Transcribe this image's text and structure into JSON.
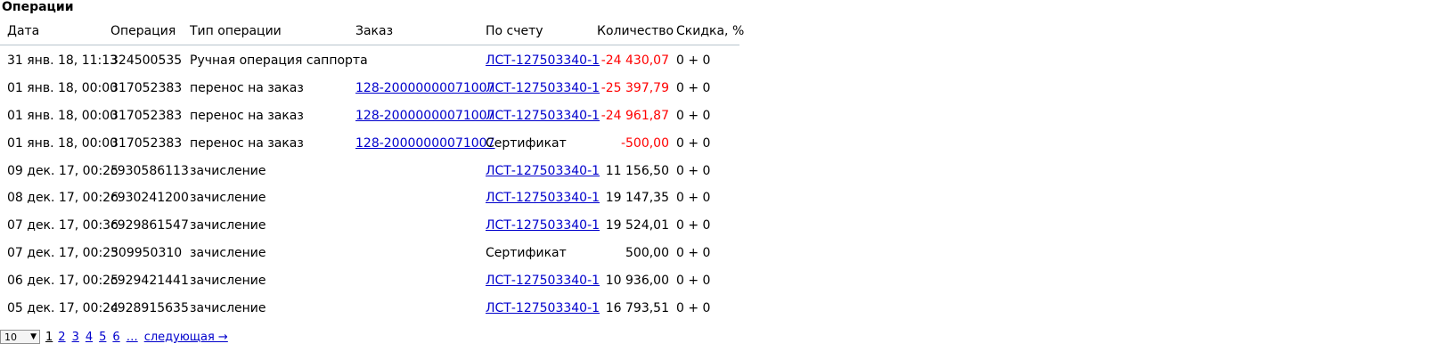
{
  "title": "Операции",
  "table": {
    "headers": [
      "Дата",
      "Операция",
      "Тип операции",
      "Заказ",
      "По счету",
      "Количество",
      "Скидка, %"
    ],
    "rows": [
      {
        "date": "31 янв. 18, 11:13",
        "op": "324500535",
        "type": "Ручная операция саппорта",
        "order": "",
        "account": "ЛСТ-127503340-1",
        "account_link": true,
        "qty": "-24 430,07",
        "neg": true,
        "discount": "0 + 0"
      },
      {
        "date": "01 янв. 18, 00:00",
        "op": "317052383",
        "type": "перенос на заказ",
        "order": "128-20000000071007",
        "account": "ЛСТ-127503340-1",
        "account_link": true,
        "qty": "-25 397,79",
        "neg": true,
        "discount": "0 + 0"
      },
      {
        "date": "01 янв. 18, 00:00",
        "op": "317052383",
        "type": "перенос на заказ",
        "order": "128-20000000071007",
        "account": "ЛСТ-127503340-1",
        "account_link": true,
        "qty": "-24 961,87",
        "neg": true,
        "discount": "0 + 0"
      },
      {
        "date": "01 янв. 18, 00:00",
        "op": "317052383",
        "type": "перенос на заказ",
        "order": "128-20000000071007",
        "account": "Сертификат",
        "account_link": false,
        "qty": "-500,00",
        "neg": true,
        "discount": "0 + 0"
      },
      {
        "date": "09 дек. 17, 00:25",
        "op": "c930586113",
        "type": "зачисление",
        "order": "",
        "account": "ЛСТ-127503340-1",
        "account_link": true,
        "qty": "11 156,50",
        "neg": false,
        "discount": "0 + 0"
      },
      {
        "date": "08 дек. 17, 00:26",
        "op": "c930241200",
        "type": "зачисление",
        "order": "",
        "account": "ЛСТ-127503340-1",
        "account_link": true,
        "qty": "19 147,35",
        "neg": false,
        "discount": "0 + 0"
      },
      {
        "date": "07 дек. 17, 00:36",
        "op": "c929861547",
        "type": "зачисление",
        "order": "",
        "account": "ЛСТ-127503340-1",
        "account_link": true,
        "qty": "19 524,01",
        "neg": false,
        "discount": "0 + 0"
      },
      {
        "date": "07 дек. 17, 00:25",
        "op": "309950310",
        "type": "зачисление",
        "order": "",
        "account": "Сертификат",
        "account_link": false,
        "qty": "500,00",
        "neg": false,
        "discount": "0 + 0"
      },
      {
        "date": "06 дек. 17, 00:25",
        "op": "c929421441",
        "type": "зачисление",
        "order": "",
        "account": "ЛСТ-127503340-1",
        "account_link": true,
        "qty": "10 936,00",
        "neg": false,
        "discount": "0 + 0"
      },
      {
        "date": "05 дек. 17, 00:24",
        "op": "c928915635",
        "type": "зачисление",
        "order": "",
        "account": "ЛСТ-127503340-1",
        "account_link": true,
        "qty": "16 793,51",
        "neg": false,
        "discount": "0 + 0"
      }
    ]
  },
  "pager": {
    "page_size": "10",
    "current": "1",
    "pages": [
      "2",
      "3",
      "4",
      "5",
      "6"
    ],
    "ellipsis": "…",
    "next": "следующая →"
  },
  "colors": {
    "negative": "#ff0000",
    "link": "#0000cc",
    "header_border": "#b7c4cc"
  }
}
